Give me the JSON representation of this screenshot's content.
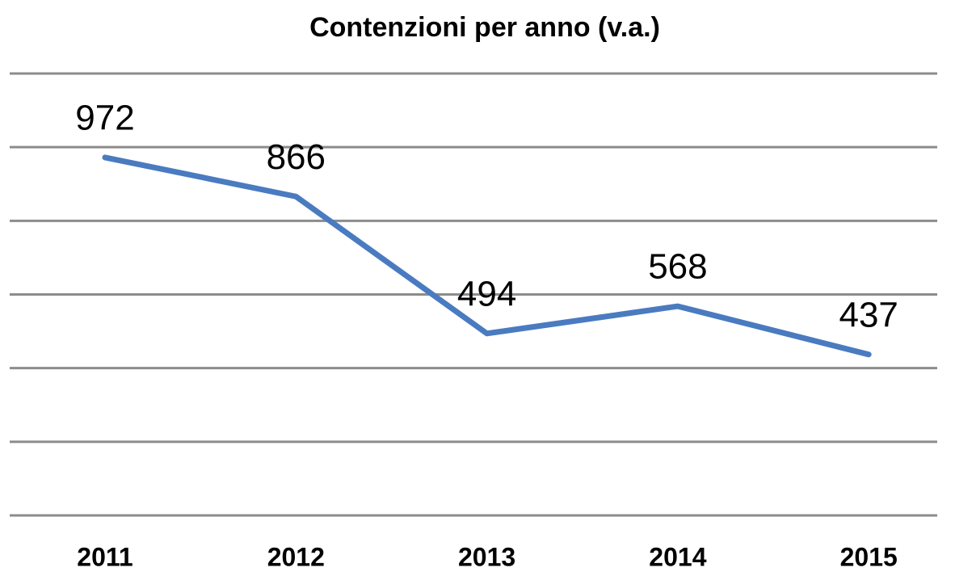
{
  "chart_data": {
    "type": "line",
    "title": "Contenzioni per anno (v.a.)",
    "categories": [
      "2011",
      "2012",
      "2013",
      "2014",
      "2015"
    ],
    "values": [
      972,
      866,
      494,
      568,
      437
    ],
    "color": "#4a7bc0",
    "ylim": [
      0,
      1200
    ],
    "yticks": [
      0,
      200,
      400,
      600,
      800,
      1000,
      1200
    ],
    "grid": true
  }
}
